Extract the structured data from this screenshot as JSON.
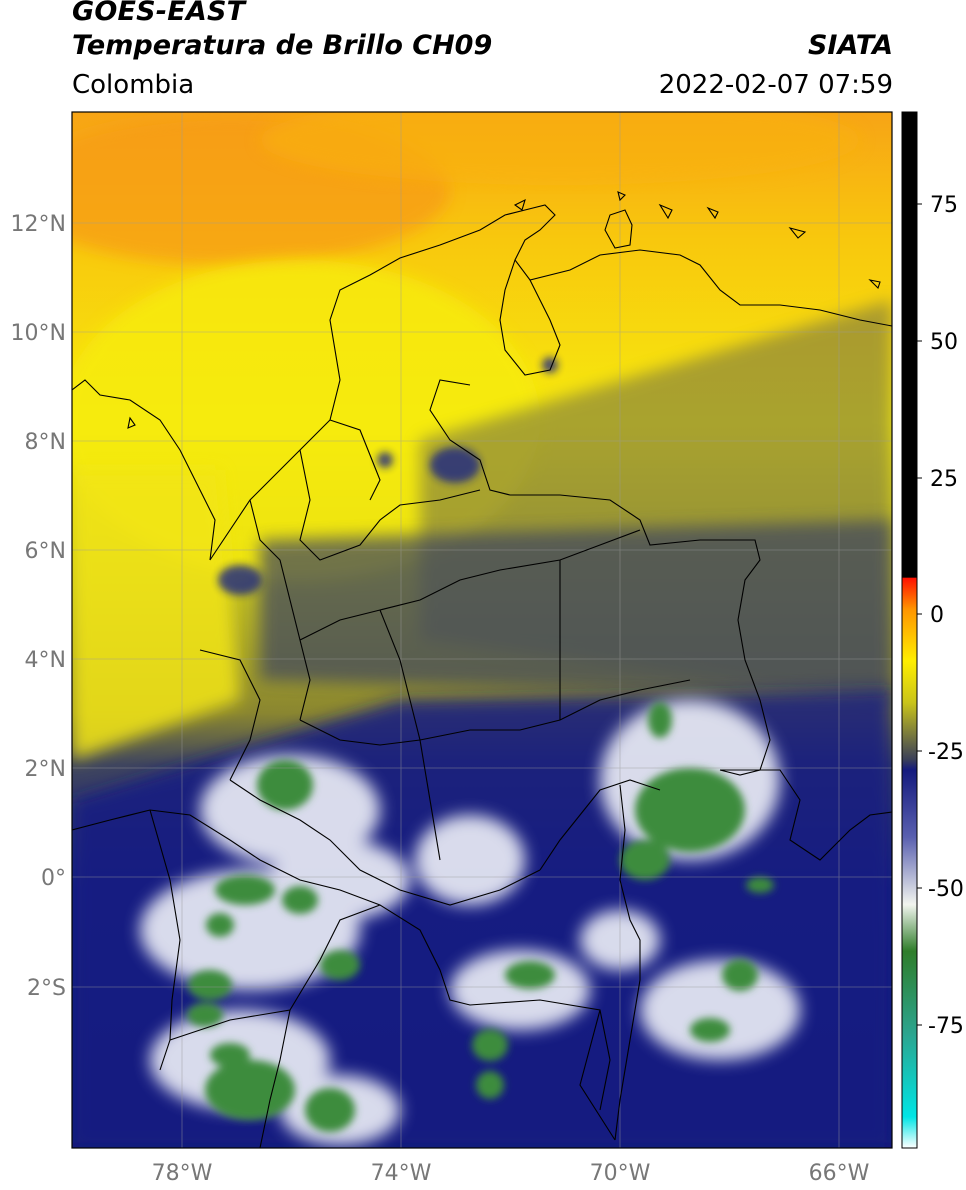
{
  "header": {
    "satellite": "GOES-EAST",
    "product": "Temperatura de Brillo CH09",
    "brand": "SIATA",
    "region": "Colombia",
    "datetime": "2022-02-07 07:59"
  },
  "axes": {
    "lat_labels": [
      "12°N",
      "10°N",
      "8°N",
      "6°N",
      "4°N",
      "2°N",
      "0°",
      "2°S"
    ],
    "lon_labels": [
      "78°W",
      "74°W",
      "70°W",
      "66°W"
    ]
  },
  "colorbar": {
    "ticks": [
      "75",
      "50",
      "25",
      "0",
      "-25",
      "-50",
      "-75"
    ],
    "stops": [
      {
        "color": "#ffffff"
      },
      {
        "color": "#00e5e5"
      },
      {
        "color": "#2ba58f"
      },
      {
        "color": "#2f7d2a"
      },
      {
        "color": "#f2f5ef"
      },
      {
        "color": "#5a60b0"
      },
      {
        "color": "#141a7e"
      },
      {
        "color": "#3a3f58"
      },
      {
        "color": "#c9c41a"
      },
      {
        "color": "#ffee00"
      },
      {
        "color": "#ff9500"
      },
      {
        "color": "#ff1100"
      },
      {
        "color": "#000000"
      }
    ]
  },
  "colors": {
    "warm_top": "#f7a416",
    "yellow": "#f6ea0e",
    "olive": "#8a8630",
    "slate": "#3f455e",
    "navy": "#161d80",
    "cloud_white": "#eef0f8",
    "cold_green": "#3c8c3c"
  }
}
